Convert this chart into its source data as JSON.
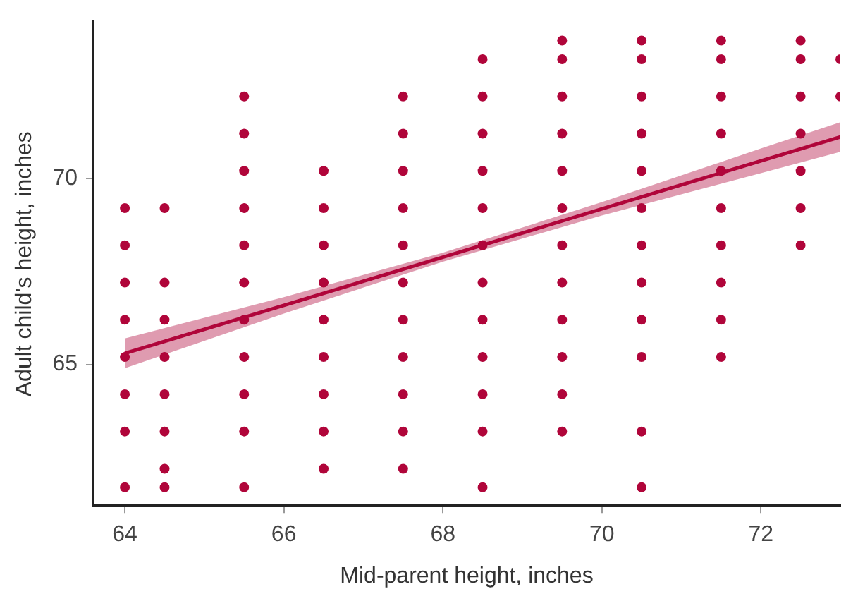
{
  "chart_data": {
    "type": "scatter",
    "xlabel": "Mid-parent height, inches",
    "ylabel": "Adult child's height, inches",
    "xlim": [
      63.6,
      73
    ],
    "ylim": [
      61.2,
      74.2
    ],
    "xticks": [
      64,
      66,
      68,
      70,
      72
    ],
    "yticks": [
      65,
      70
    ],
    "grid": false,
    "legend": false,
    "marker": "circle",
    "series": [
      {
        "type": "scatter",
        "color": "#b0053a",
        "x": [
          64,
          64,
          64,
          64,
          64,
          64,
          64,
          64,
          64.5,
          64.5,
          64.5,
          64.5,
          64.5,
          64.5,
          64.5,
          64.5,
          65.5,
          65.5,
          65.5,
          65.5,
          65.5,
          65.5,
          65.5,
          65.5,
          65.5,
          65.5,
          65.5,
          66.5,
          66.5,
          66.5,
          66.5,
          66.5,
          66.5,
          66.5,
          66.5,
          66.5,
          67.5,
          67.5,
          67.5,
          67.5,
          67.5,
          67.5,
          67.5,
          67.5,
          67.5,
          67.5,
          67.5,
          68.5,
          68.5,
          68.5,
          68.5,
          68.5,
          68.5,
          68.5,
          68.5,
          68.5,
          68.5,
          68.5,
          68.5,
          69.5,
          69.5,
          69.5,
          69.5,
          69.5,
          69.5,
          69.5,
          69.5,
          69.5,
          69.5,
          69.5,
          69.5,
          70.5,
          70.5,
          70.5,
          70.5,
          70.5,
          70.5,
          70.5,
          70.5,
          70.5,
          70.5,
          70.5,
          70.5,
          71.5,
          71.5,
          71.5,
          71.5,
          71.5,
          71.5,
          71.5,
          71.5,
          71.5,
          71.5,
          72.5,
          72.5,
          72.5,
          72.5,
          72.5,
          72.5,
          72.5,
          73,
          73
        ],
        "values": [
          69.2,
          68.2,
          67.2,
          66.2,
          65.2,
          64.2,
          63.2,
          61.7,
          69.2,
          67.2,
          66.2,
          65.2,
          64.2,
          63.2,
          62.2,
          61.7,
          72.2,
          71.2,
          70.2,
          69.2,
          68.2,
          67.2,
          66.2,
          65.2,
          64.2,
          63.2,
          61.7,
          70.2,
          69.2,
          68.2,
          67.2,
          66.2,
          65.2,
          64.2,
          63.2,
          62.2,
          72.2,
          71.2,
          70.2,
          69.2,
          68.2,
          67.2,
          66.2,
          65.2,
          64.2,
          63.2,
          62.2,
          73.2,
          72.2,
          71.2,
          70.2,
          69.2,
          68.2,
          67.2,
          66.2,
          65.2,
          64.2,
          63.2,
          61.7,
          73.7,
          73.2,
          72.2,
          71.2,
          70.2,
          69.2,
          68.2,
          67.2,
          66.2,
          65.2,
          64.2,
          63.2,
          73.7,
          73.2,
          72.2,
          71.2,
          70.2,
          69.2,
          68.2,
          67.2,
          66.2,
          65.2,
          63.2,
          61.7,
          73.7,
          73.2,
          72.2,
          71.2,
          70.2,
          69.2,
          68.2,
          67.2,
          66.2,
          65.2,
          73.7,
          73.2,
          72.2,
          71.2,
          70.2,
          69.2,
          68.2,
          73.2,
          72.2
        ]
      },
      {
        "type": "line",
        "color": "#b0053a",
        "marker": "none",
        "line_style": "solid",
        "x": [
          64,
          66,
          68,
          70,
          72,
          73
        ],
        "values": [
          65.3,
          66.59,
          67.88,
          69.18,
          70.47,
          71.11
        ],
        "lower": [
          64.9,
          66.37,
          67.76,
          69.0,
          70.14,
          70.71
        ],
        "upper": [
          65.7,
          66.81,
          68.0,
          69.36,
          70.8,
          71.51
        ]
      }
    ]
  }
}
